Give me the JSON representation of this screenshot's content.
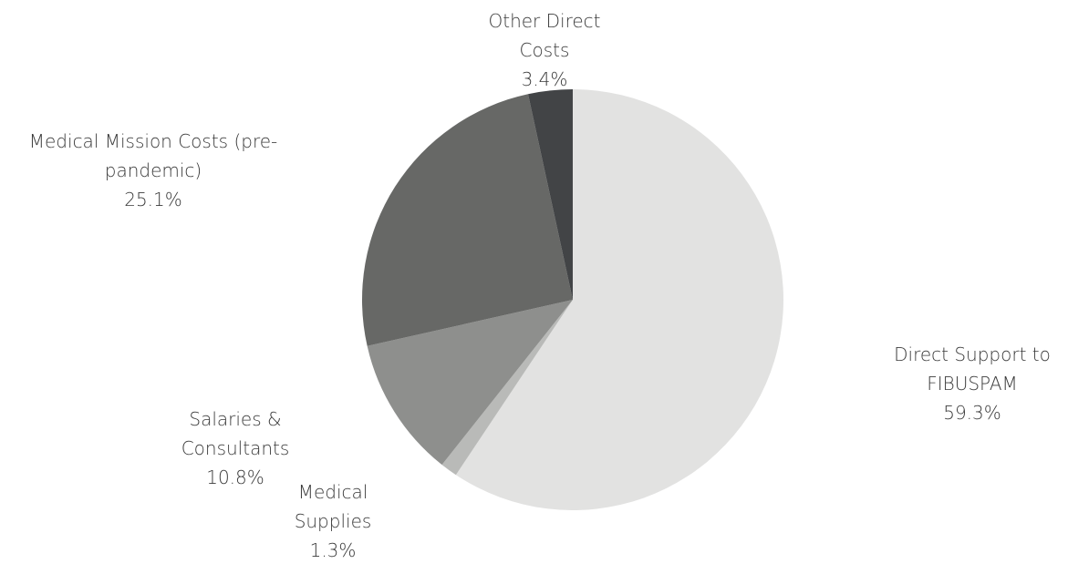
{
  "chart_data": {
    "type": "pie",
    "title": "",
    "start_angle_deg": 0,
    "direction": "clockwise",
    "slices": [
      {
        "label_lines": [
          "Direct Support to",
          "FIBUSPAM"
        ],
        "value": 59.3,
        "value_label": "59.3%",
        "color": "#e2e2e1"
      },
      {
        "label_lines": [
          "Medical",
          "Supplies"
        ],
        "value": 1.3,
        "value_label": "1.3%",
        "color": "#b9bab8"
      },
      {
        "label_lines": [
          "Salaries &",
          "Consultants"
        ],
        "value": 10.8,
        "value_label": "10.8%",
        "color": "#8e8f8d"
      },
      {
        "label_lines": [
          "Medical Mission Costs (pre-",
          "pandemic)"
        ],
        "value": 25.1,
        "value_label": "25.1%",
        "color": "#676866"
      },
      {
        "label_lines": [
          "Other Direct",
          "Costs"
        ],
        "value": 3.4,
        "value_label": "3.4%",
        "color": "#424446"
      }
    ]
  }
}
